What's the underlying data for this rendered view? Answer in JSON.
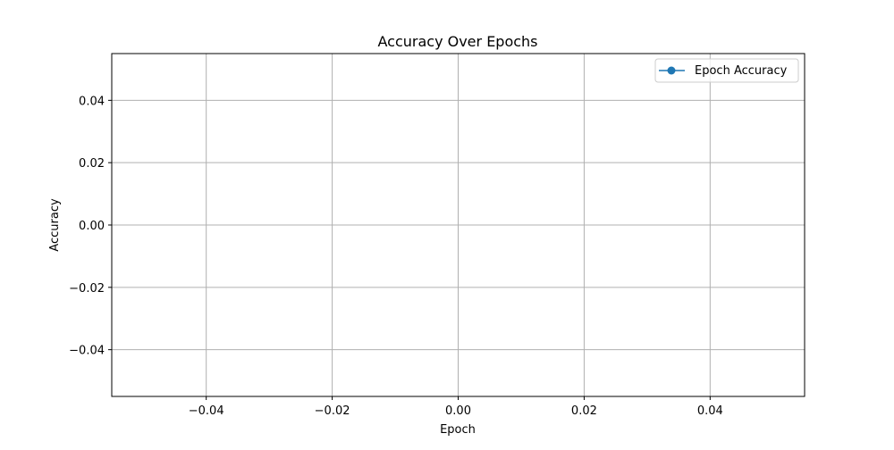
{
  "chart_data": {
    "type": "line",
    "title": "Accuracy Over Epochs",
    "xlabel": "Epoch",
    "ylabel": "Accuracy",
    "xlim": [
      -0.055,
      0.055
    ],
    "ylim": [
      -0.055,
      0.055
    ],
    "x_ticks": [
      -0.04,
      -0.02,
      0.0,
      0.02,
      0.04
    ],
    "x_tick_labels": [
      "−0.04",
      "−0.02",
      "0.00",
      "0.02",
      "0.04"
    ],
    "y_ticks": [
      0.04,
      0.02,
      0.0,
      -0.02,
      -0.04
    ],
    "y_tick_labels": [
      "0.04",
      "0.02",
      "0.00",
      "−0.02",
      "−0.04"
    ],
    "grid": true,
    "legend_position": "top-right",
    "series": [
      {
        "name": "Epoch Accuracy",
        "color": "#1f77b4",
        "marker": "circle",
        "x": [],
        "y": []
      }
    ]
  }
}
